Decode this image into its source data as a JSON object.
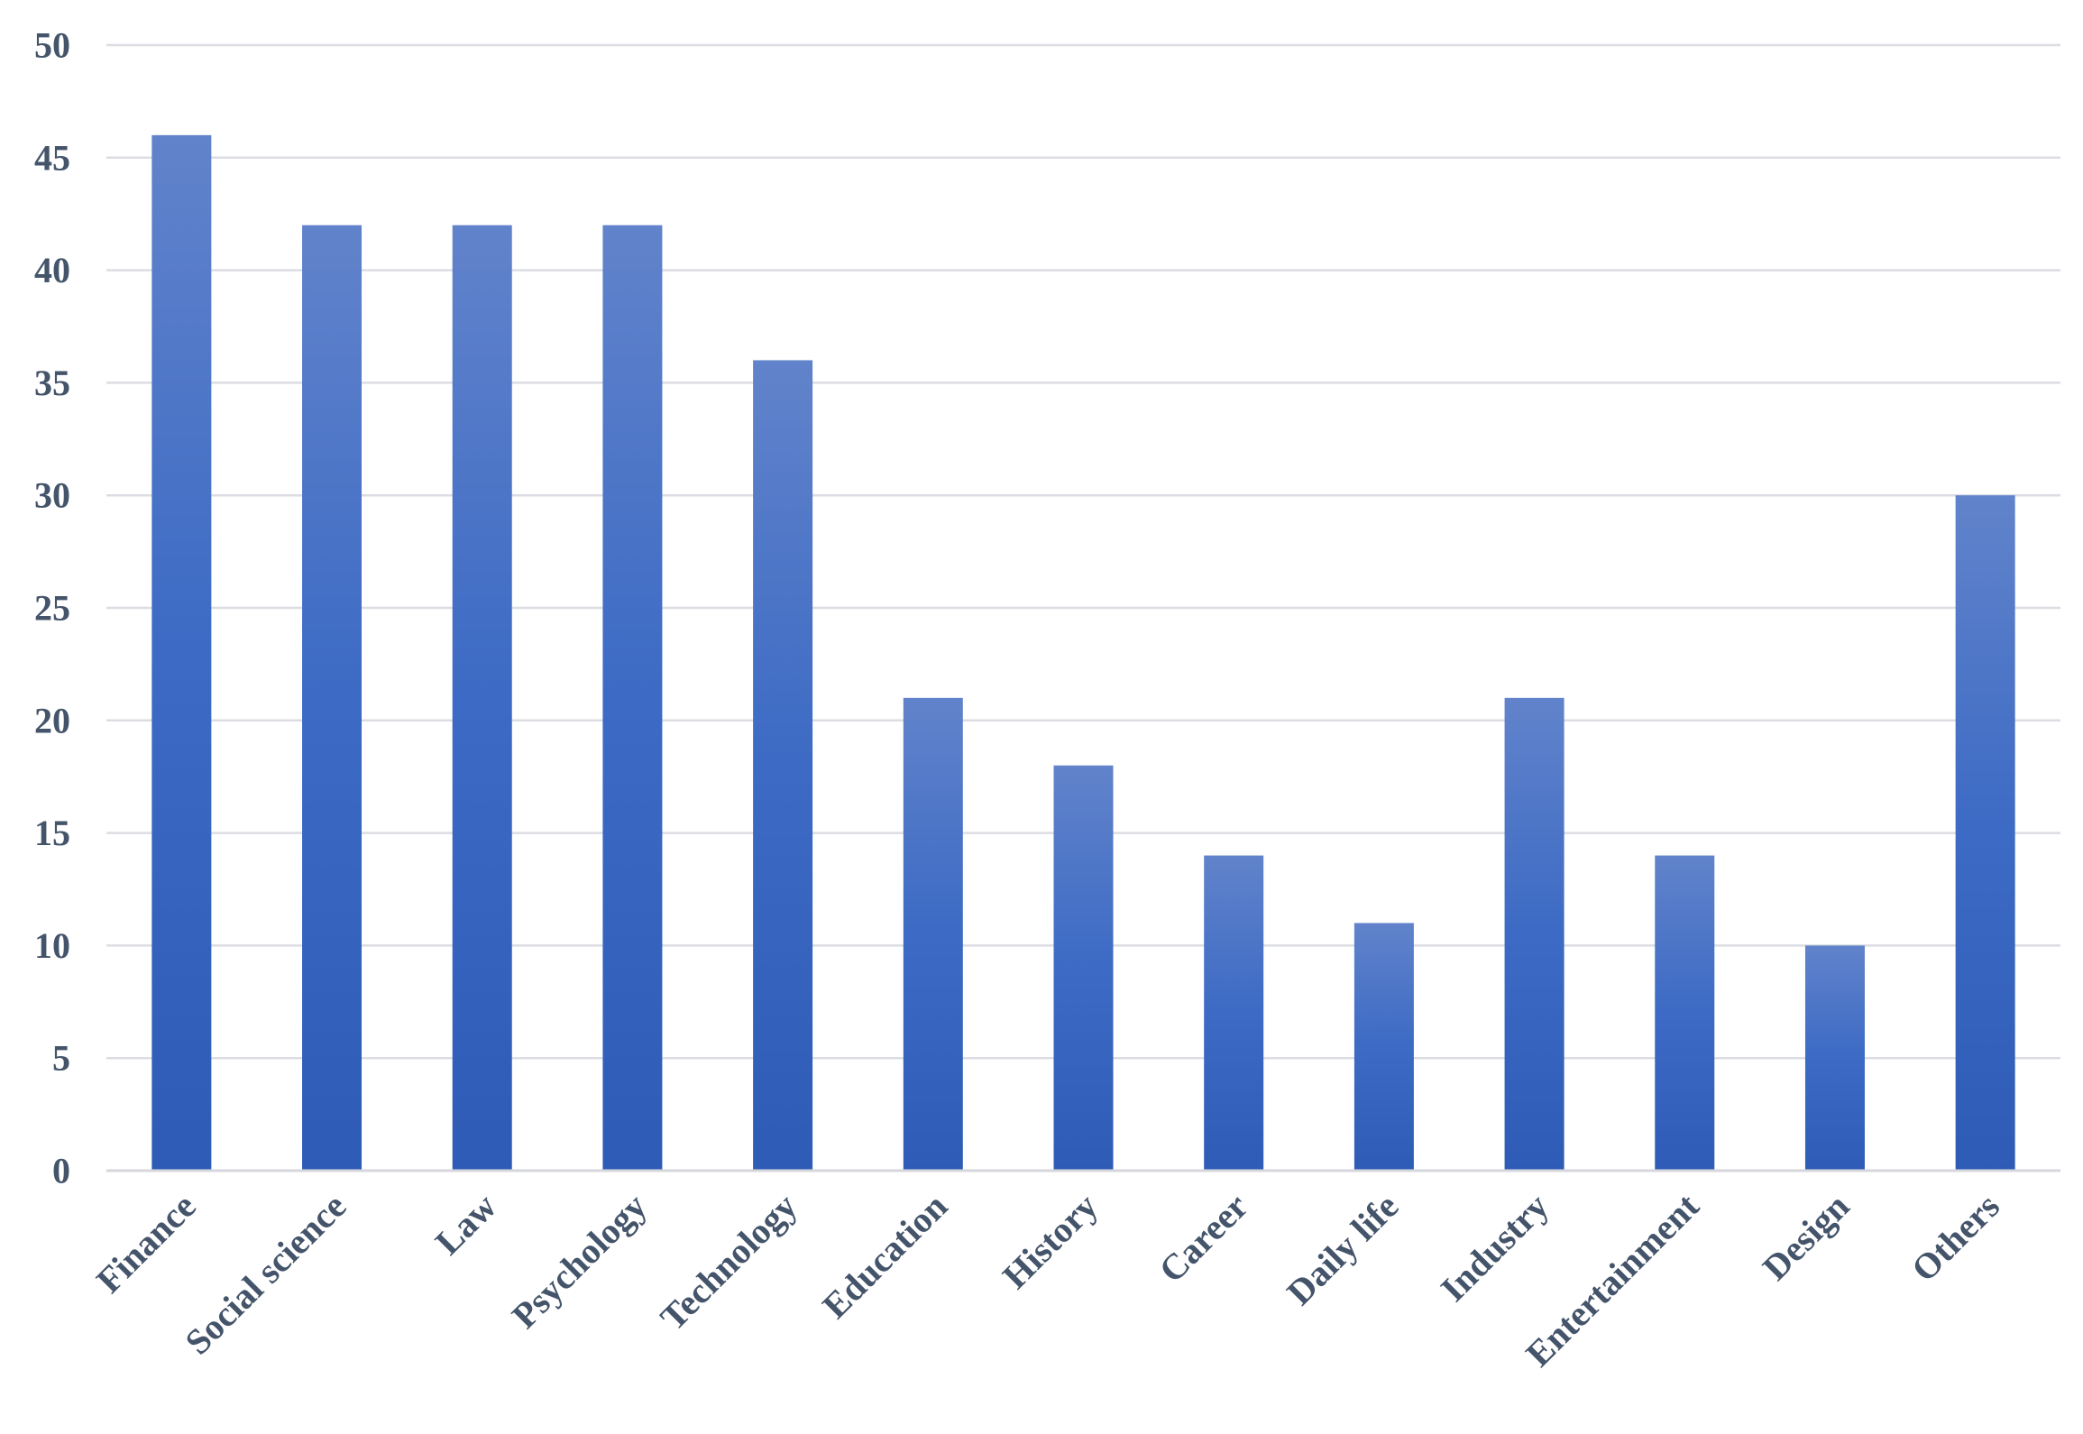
{
  "chart_data": {
    "type": "bar",
    "categories": [
      "Finance",
      "Social science",
      "Law",
      "Psychology",
      "Technology",
      "Education",
      "History",
      "Career",
      "Daily life",
      "Industry",
      "Entertainment",
      "Design",
      "Others"
    ],
    "values": [
      46,
      42,
      42,
      42,
      36,
      21,
      18,
      14,
      11,
      21,
      14,
      10,
      30
    ],
    "title": "",
    "xlabel": "",
    "ylabel": "",
    "ylim": [
      0,
      50
    ],
    "yticks": [
      0,
      5,
      10,
      15,
      20,
      25,
      30,
      35,
      40,
      45,
      50
    ],
    "grid": true,
    "legend": "none",
    "colors": {
      "bar_top": "#6183cb",
      "bar_mid": "#3c6ac4",
      "bar_bottom": "#2e5bb5",
      "gridline": "#dcdde3",
      "tick_text": "#44546a"
    }
  }
}
